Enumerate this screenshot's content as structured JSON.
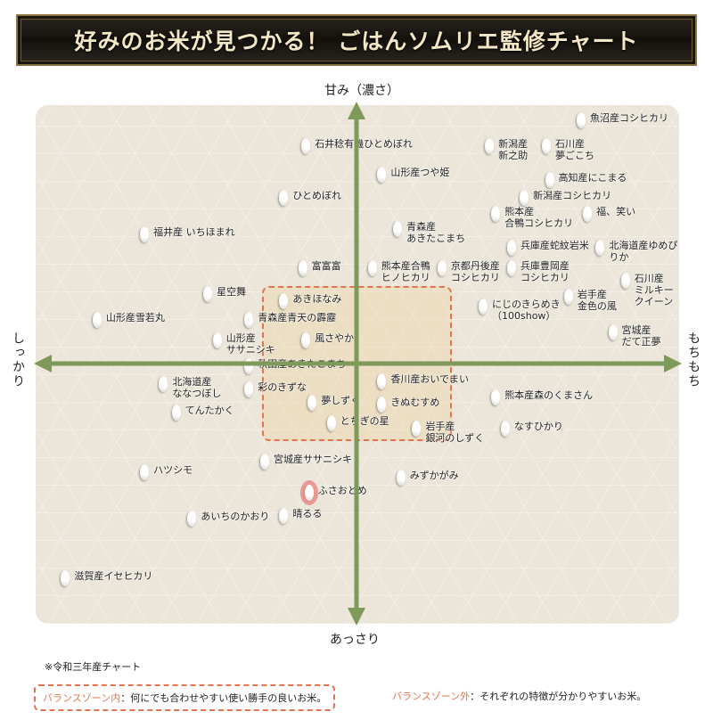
{
  "title": "好みのお米が見つかる！ ごはんソムリエ監修チャート",
  "note": "※令和三年産チャート",
  "legend": {
    "inside_key": "バランスゾーン内",
    "inside_text": "：何にでも合わせやすい使い勝手の良いお米。",
    "outside_key": "バランスゾーン外",
    "outside_text": "：それぞれの特徴が分かりやすいお米。"
  },
  "colors": {
    "axis": "#7e9a5a",
    "zone": "#e2734e",
    "highlight": "#e86e6e"
  },
  "chart_data": {
    "type": "scatter",
    "title": "好みのお米が見つかる！ ごはんソムリエ監修チャート",
    "xlabel_left": "しっかり",
    "xlabel_right": "もちもち",
    "ylabel_top": "甘み（濃さ）",
    "ylabel_bottom": "あっさり",
    "xlim": [
      -10,
      10
    ],
    "ylim": [
      -10,
      10
    ],
    "grid": false,
    "balance_zone": {
      "x": [
        -3,
        3
      ],
      "y": [
        -3,
        3
      ]
    },
    "points": [
      {
        "label": "魚沼産コシヒカリ",
        "x": 7.1,
        "y": 9.4
      },
      {
        "label": "石井稔有機ひとめぼれ",
        "x": -1.6,
        "y": 8.4
      },
      {
        "label": "新潟産\n新之助",
        "x": 4.2,
        "y": 8.4
      },
      {
        "label": "石川産\n夢ごこち",
        "x": 6.0,
        "y": 8.4
      },
      {
        "label": "山形産つや姫",
        "x": 0.8,
        "y": 7.3
      },
      {
        "label": "高知産にこまる",
        "x": 6.1,
        "y": 7.1
      },
      {
        "label": "ひとめぼれ",
        "x": -2.3,
        "y": 6.4
      },
      {
        "label": "新潟産コシヒカリ",
        "x": 5.3,
        "y": 6.4
      },
      {
        "label": "熊本産\n合鴨コシヒカリ",
        "x": 4.4,
        "y": 5.8
      },
      {
        "label": "福、笑い",
        "x": 7.3,
        "y": 5.8
      },
      {
        "label": "青森産\nあきたこまち",
        "x": 1.3,
        "y": 5.2
      },
      {
        "label": "福井産 いちほまれ",
        "x": -6.7,
        "y": 5.0
      },
      {
        "label": "兵庫産蛇紋岩米",
        "x": 4.9,
        "y": 4.5
      },
      {
        "label": "北海道産ゆめぴりか",
        "x": 7.7,
        "y": 4.5
      },
      {
        "label": "富富富",
        "x": -1.7,
        "y": 3.7
      },
      {
        "label": "熊本産合鴨\nヒノヒカリ",
        "x": 0.5,
        "y": 3.7
      },
      {
        "label": "京都丹後産\nコシヒカリ",
        "x": 2.7,
        "y": 3.7
      },
      {
        "label": "兵庫豊岡産\nコシヒカリ",
        "x": 4.9,
        "y": 3.7
      },
      {
        "label": "石川産\nミルキークイーン",
        "x": 8.5,
        "y": 3.2
      },
      {
        "label": "星空舞",
        "x": -4.7,
        "y": 2.7
      },
      {
        "label": "あきほなみ",
        "x": -2.3,
        "y": 2.4
      },
      {
        "label": "岩手産\n金色の風",
        "x": 6.7,
        "y": 2.6
      },
      {
        "label": "にじのきらめき\n（100show）",
        "x": 4.0,
        "y": 2.2
      },
      {
        "label": "山形産雪若丸",
        "x": -8.2,
        "y": 1.7
      },
      {
        "label": "青森産青天の霹靂",
        "x": -3.4,
        "y": 1.7
      },
      {
        "label": "宮城産\nだて正夢",
        "x": 8.1,
        "y": 1.2
      },
      {
        "label": "山形産\nササニシキ",
        "x": -4.4,
        "y": 0.9
      },
      {
        "label": "風さやか",
        "x": -1.6,
        "y": 0.9
      },
      {
        "label": "秋田産あきたこまち",
        "x": -3.4,
        "y": -0.1
      },
      {
        "label": "北海道産\nななつぼし",
        "x": -6.1,
        "y": -0.8
      },
      {
        "label": "香川産おいでまい",
        "x": 0.8,
        "y": -0.7
      },
      {
        "label": "彩のきずな",
        "x": -3.4,
        "y": -1.0
      },
      {
        "label": "熊本産森のくまさん",
        "x": 4.4,
        "y": -1.3
      },
      {
        "label": "夢しずく",
        "x": -1.4,
        "y": -1.5
      },
      {
        "label": "きぬむすめ",
        "x": 0.8,
        "y": -1.6
      },
      {
        "label": "てんたかく",
        "x": -5.7,
        "y": -1.9
      },
      {
        "label": "とちぎの星",
        "x": -0.8,
        "y": -2.3
      },
      {
        "label": "岩手産\n銀河のしずく",
        "x": 1.9,
        "y": -2.5
      },
      {
        "label": "なすひかり",
        "x": 4.7,
        "y": -2.5
      },
      {
        "label": "宮城産ササニシキ",
        "x": -2.9,
        "y": -3.8
      },
      {
        "label": "ハツシモ",
        "x": -6.7,
        "y": -4.2
      },
      {
        "label": "みずかがみ",
        "x": 1.4,
        "y": -4.4
      },
      {
        "label": "ふさおとめ",
        "x": -1.5,
        "y": -5.0,
        "highlighted": true
      },
      {
        "label": "あいちのかおり",
        "x": -5.2,
        "y": -6.0
      },
      {
        "label": "晴るる",
        "x": -2.3,
        "y": -5.9
      },
      {
        "label": "滋賀産イセヒカリ",
        "x": -9.2,
        "y": -8.3
      }
    ]
  }
}
